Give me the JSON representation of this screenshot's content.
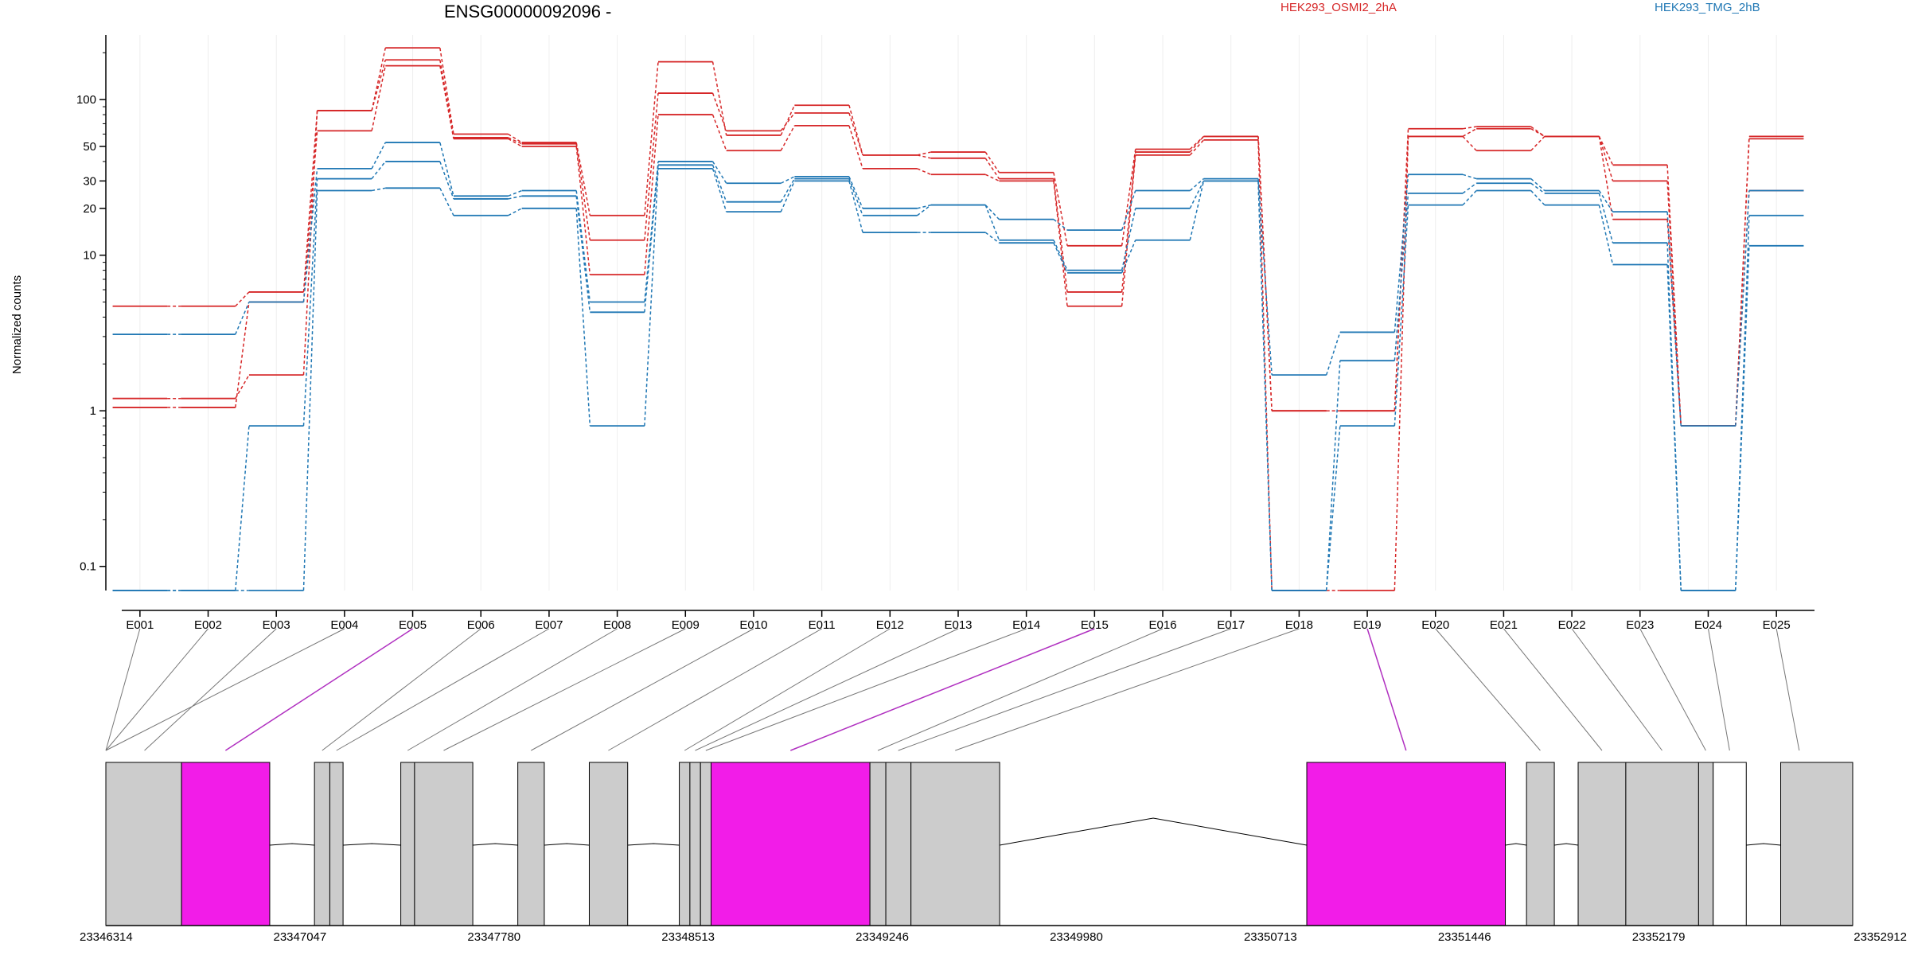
{
  "chart_data": {
    "type": "line",
    "title": "ENSG00000092096 -",
    "ylabel": "Normalized counts",
    "y_scale": "log",
    "ylim": [
      0.07,
      260
    ],
    "y_ticks": [
      {
        "value": 0.1,
        "label": "0.1"
      },
      {
        "value": 1,
        "label": "1"
      },
      {
        "value": 10,
        "label": "10"
      },
      {
        "value": 20,
        "label": "20"
      },
      {
        "value": 30,
        "label": "30"
      },
      {
        "value": 50,
        "label": "50"
      },
      {
        "value": 100,
        "label": "100"
      }
    ],
    "categories": [
      "E001",
      "E002",
      "E003",
      "E004",
      "E005",
      "E006",
      "E007",
      "E008",
      "E009",
      "E010",
      "E011",
      "E012",
      "E013",
      "E014",
      "E015",
      "E016",
      "E017",
      "E018",
      "E019",
      "E020",
      "E021",
      "E022",
      "E023",
      "E024",
      "E025"
    ],
    "legend": [
      {
        "name": "HEK293_OSMI2_2hA",
        "color": "#d62728"
      },
      {
        "name": "HEK293_TMG_2hB",
        "color": "#1f77b4"
      }
    ],
    "series": [
      {
        "condition": "HEK293_OSMI2_2hA",
        "color": "#d62728",
        "values": [
          4.7,
          4.7,
          5.8,
          85,
          215,
          60,
          53,
          18,
          175,
          59,
          92,
          44,
          46,
          34,
          11.5,
          48,
          58,
          1.0,
          1.0,
          65,
          67,
          58,
          38,
          0.8,
          58
        ]
      },
      {
        "condition": "HEK293_OSMI2_2hA",
        "color": "#d62728",
        "values": [
          1.2,
          1.2,
          1.7,
          85,
          180,
          57,
          52,
          12.5,
          110,
          63,
          82,
          44,
          42,
          31,
          5.8,
          46,
          58,
          1.0,
          1.0,
          58,
          65,
          58,
          30,
          0.8,
          56
        ]
      },
      {
        "condition": "HEK293_OSMI2_2hA",
        "color": "#d62728",
        "values": [
          1.05,
          1.05,
          5.0,
          63,
          165,
          56,
          50,
          7.5,
          80,
          47,
          68,
          36,
          33,
          30,
          4.7,
          44,
          55,
          0.07,
          0.07,
          58,
          47,
          58,
          17,
          0.8,
          26
        ]
      },
      {
        "condition": "HEK293_TMG_2hB",
        "color": "#1f77b4",
        "values": [
          3.1,
          3.1,
          5.0,
          36,
          53,
          24,
          26,
          5.0,
          40,
          29,
          32,
          20,
          21,
          17,
          14.5,
          26,
          31,
          1.7,
          3.2,
          33,
          31,
          26,
          19,
          0.8,
          26
        ]
      },
      {
        "condition": "HEK293_TMG_2hB",
        "color": "#1f77b4",
        "values": [
          0.07,
          0.07,
          0.8,
          31,
          40,
          23,
          24,
          4.3,
          38,
          22,
          31,
          18,
          21,
          12.5,
          8.0,
          20,
          30,
          0.07,
          2.1,
          25,
          29,
          25,
          12,
          0.07,
          18
        ]
      },
      {
        "condition": "HEK293_TMG_2hB",
        "color": "#1f77b4",
        "values": [
          0.07,
          0.07,
          0.07,
          26,
          27,
          18,
          20,
          0.8,
          36,
          19,
          30,
          14,
          14,
          12,
          7.7,
          12.5,
          30,
          0.07,
          0.8,
          21,
          26,
          21,
          8.7,
          0.07,
          11.5
        ]
      }
    ],
    "genomic_axis": {
      "range": [
        23346314,
        23352912
      ],
      "tick_labels": [
        "23346314",
        "23347047",
        "23347780",
        "23348513",
        "23349246",
        "23349980",
        "23350713",
        "23351446",
        "23352179",
        "23352912"
      ]
    },
    "exon_blocks": [
      {
        "start": 23346314,
        "end": 23346600,
        "highlight": false
      },
      {
        "start": 23346600,
        "end": 23346933,
        "highlight": true
      },
      {
        "start": 23347102,
        "end": 23347160,
        "highlight": false
      },
      {
        "start": 23347160,
        "end": 23347210,
        "highlight": false
      },
      {
        "start": 23347428,
        "end": 23347480,
        "highlight": false
      },
      {
        "start": 23347480,
        "end": 23347700,
        "highlight": false
      },
      {
        "start": 23347870,
        "end": 23347970,
        "highlight": false
      },
      {
        "start": 23348140,
        "end": 23348285,
        "highlight": false
      },
      {
        "start": 23348480,
        "end": 23348520,
        "highlight": false
      },
      {
        "start": 23348520,
        "end": 23348560,
        "highlight": false
      },
      {
        "start": 23348560,
        "end": 23348600,
        "highlight": false
      },
      {
        "start": 23348600,
        "end": 23349200,
        "highlight": true
      },
      {
        "start": 23349200,
        "end": 23349260,
        "highlight": false
      },
      {
        "start": 23349260,
        "end": 23349355,
        "highlight": false
      },
      {
        "start": 23349355,
        "end": 23349690,
        "highlight": false
      },
      {
        "start": 23350850,
        "end": 23351600,
        "highlight": true
      },
      {
        "start": 23351680,
        "end": 23351785,
        "highlight": false
      },
      {
        "start": 23351875,
        "end": 23352055,
        "highlight": false
      },
      {
        "start": 23352055,
        "end": 23352330,
        "highlight": false
      },
      {
        "start": 23352330,
        "end": 23352385,
        "highlight": false
      },
      {
        "start": 23352385,
        "end": 23352510,
        "highlight": false,
        "open": true
      },
      {
        "start": 23352640,
        "end": 23352912,
        "highlight": false
      }
    ],
    "exon_links": [
      {
        "exon": "E001",
        "genomic": 23346314,
        "highlight": false
      },
      {
        "exon": "E002",
        "genomic": 23346314,
        "highlight": false
      },
      {
        "exon": "E003",
        "genomic": 23346460,
        "highlight": false
      },
      {
        "exon": "E004",
        "genomic": 23346314,
        "highlight": false
      },
      {
        "exon": "E005",
        "genomic": 23346766,
        "highlight": true
      },
      {
        "exon": "E006",
        "genomic": 23347131,
        "highlight": false
      },
      {
        "exon": "E007",
        "genomic": 23347185,
        "highlight": false
      },
      {
        "exon": "E008",
        "genomic": 23347454,
        "highlight": false
      },
      {
        "exon": "E009",
        "genomic": 23347590,
        "highlight": false
      },
      {
        "exon": "E010",
        "genomic": 23347920,
        "highlight": false
      },
      {
        "exon": "E011",
        "genomic": 23348212,
        "highlight": false
      },
      {
        "exon": "E012",
        "genomic": 23348500,
        "highlight": false
      },
      {
        "exon": "E013",
        "genomic": 23348540,
        "highlight": false
      },
      {
        "exon": "E014",
        "genomic": 23348580,
        "highlight": false
      },
      {
        "exon": "E015",
        "genomic": 23348900,
        "highlight": true
      },
      {
        "exon": "E016",
        "genomic": 23349230,
        "highlight": false
      },
      {
        "exon": "E017",
        "genomic": 23349307,
        "highlight": false
      },
      {
        "exon": "E018",
        "genomic": 23349522,
        "highlight": false
      },
      {
        "exon": "E019",
        "genomic": 23351225,
        "highlight": true
      },
      {
        "exon": "E020",
        "genomic": 23351732,
        "highlight": false
      },
      {
        "exon": "E021",
        "genomic": 23351965,
        "highlight": false
      },
      {
        "exon": "E022",
        "genomic": 23352192,
        "highlight": false
      },
      {
        "exon": "E023",
        "genomic": 23352357,
        "highlight": false
      },
      {
        "exon": "E024",
        "genomic": 23352447,
        "highlight": false
      },
      {
        "exon": "E025",
        "genomic": 23352710,
        "highlight": false
      }
    ],
    "introns": [
      {
        "from": 23346933,
        "to": 23347102,
        "peak": "low"
      },
      {
        "from": 23347210,
        "to": 23347428,
        "peak": "low"
      },
      {
        "from": 23347700,
        "to": 23347870,
        "peak": "low"
      },
      {
        "from": 23347970,
        "to": 23348140,
        "peak": "low"
      },
      {
        "from": 23348285,
        "to": 23348480,
        "peak": "low"
      },
      {
        "from": 23349690,
        "to": 23350850,
        "peak": "high"
      },
      {
        "from": 23351600,
        "to": 23351680,
        "peak": "low"
      },
      {
        "from": 23351785,
        "to": 23351875,
        "peak": "low"
      },
      {
        "from": 23352510,
        "to": 23352640,
        "peak": "low"
      }
    ],
    "colors": {
      "highlight_exon": "#f21ce8",
      "exon_fill": "#cccccc",
      "grid": "#eeeeee",
      "link": "#777777",
      "highlight_link": "#b030c0"
    }
  }
}
